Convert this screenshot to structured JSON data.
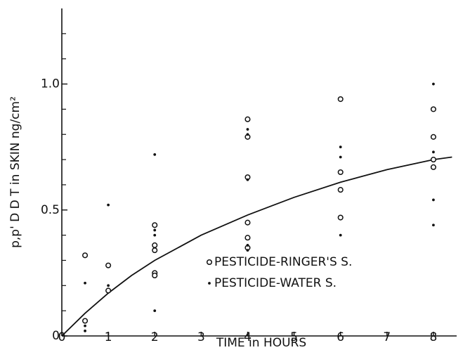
{
  "chart_data": {
    "type": "scatter",
    "xlabel": "TIME in HOURS",
    "ylabel": "p,p' D D T in SKIN  ng/cm²",
    "xlim": [
      0,
      8.5
    ],
    "xticks": [
      0,
      1,
      2,
      3,
      4,
      5,
      6,
      7,
      8
    ],
    "ylim": [
      0,
      1.3
    ],
    "yticks": [
      0,
      0.5,
      {
        "value": 1,
        "label": "1.0"
      }
    ],
    "yminorticks": [
      0.1,
      0.2,
      0.3,
      0.4,
      0.6,
      0.7,
      0.8,
      0.9,
      1.1,
      1.2
    ],
    "color": "#111111",
    "series": [
      {
        "name": "PESTICIDE-RINGER'S S.",
        "marker": "open-circle",
        "x": [
          0.5,
          0.5,
          1,
          1,
          2,
          2,
          2,
          2,
          2,
          4,
          4,
          4,
          4,
          4,
          4,
          6,
          6,
          6,
          6,
          8,
          8,
          8,
          8
        ],
        "values": [
          0.32,
          0.06,
          0.28,
          0.18,
          0.44,
          0.36,
          0.34,
          0.25,
          0.24,
          0.86,
          0.79,
          0.63,
          0.45,
          0.39,
          0.35,
          0.94,
          0.65,
          0.58,
          0.47,
          0.9,
          0.79,
          0.7,
          0.67
        ]
      },
      {
        "name": "PESTICIDE-WATER  S.",
        "marker": "dot",
        "x": [
          0.5,
          0.5,
          0.5,
          1,
          1,
          2,
          2,
          2,
          2,
          4,
          4,
          4,
          4,
          4,
          6,
          6,
          6,
          8,
          8,
          8,
          8
        ],
        "values": [
          0.21,
          0.04,
          0.02,
          0.52,
          0.2,
          0.72,
          0.42,
          0.4,
          0.1,
          0.82,
          0.8,
          0.62,
          0.36,
          0.34,
          0.75,
          0.71,
          0.4,
          1.0,
          0.73,
          0.54,
          0.44
        ]
      }
    ],
    "curve": {
      "x": [
        0,
        0.5,
        1,
        1.5,
        2,
        3,
        4,
        5,
        6,
        7,
        8,
        8.4
      ],
      "values": [
        0,
        0.09,
        0.17,
        0.24,
        0.3,
        0.4,
        0.48,
        0.55,
        0.61,
        0.66,
        0.7,
        0.71
      ]
    }
  }
}
